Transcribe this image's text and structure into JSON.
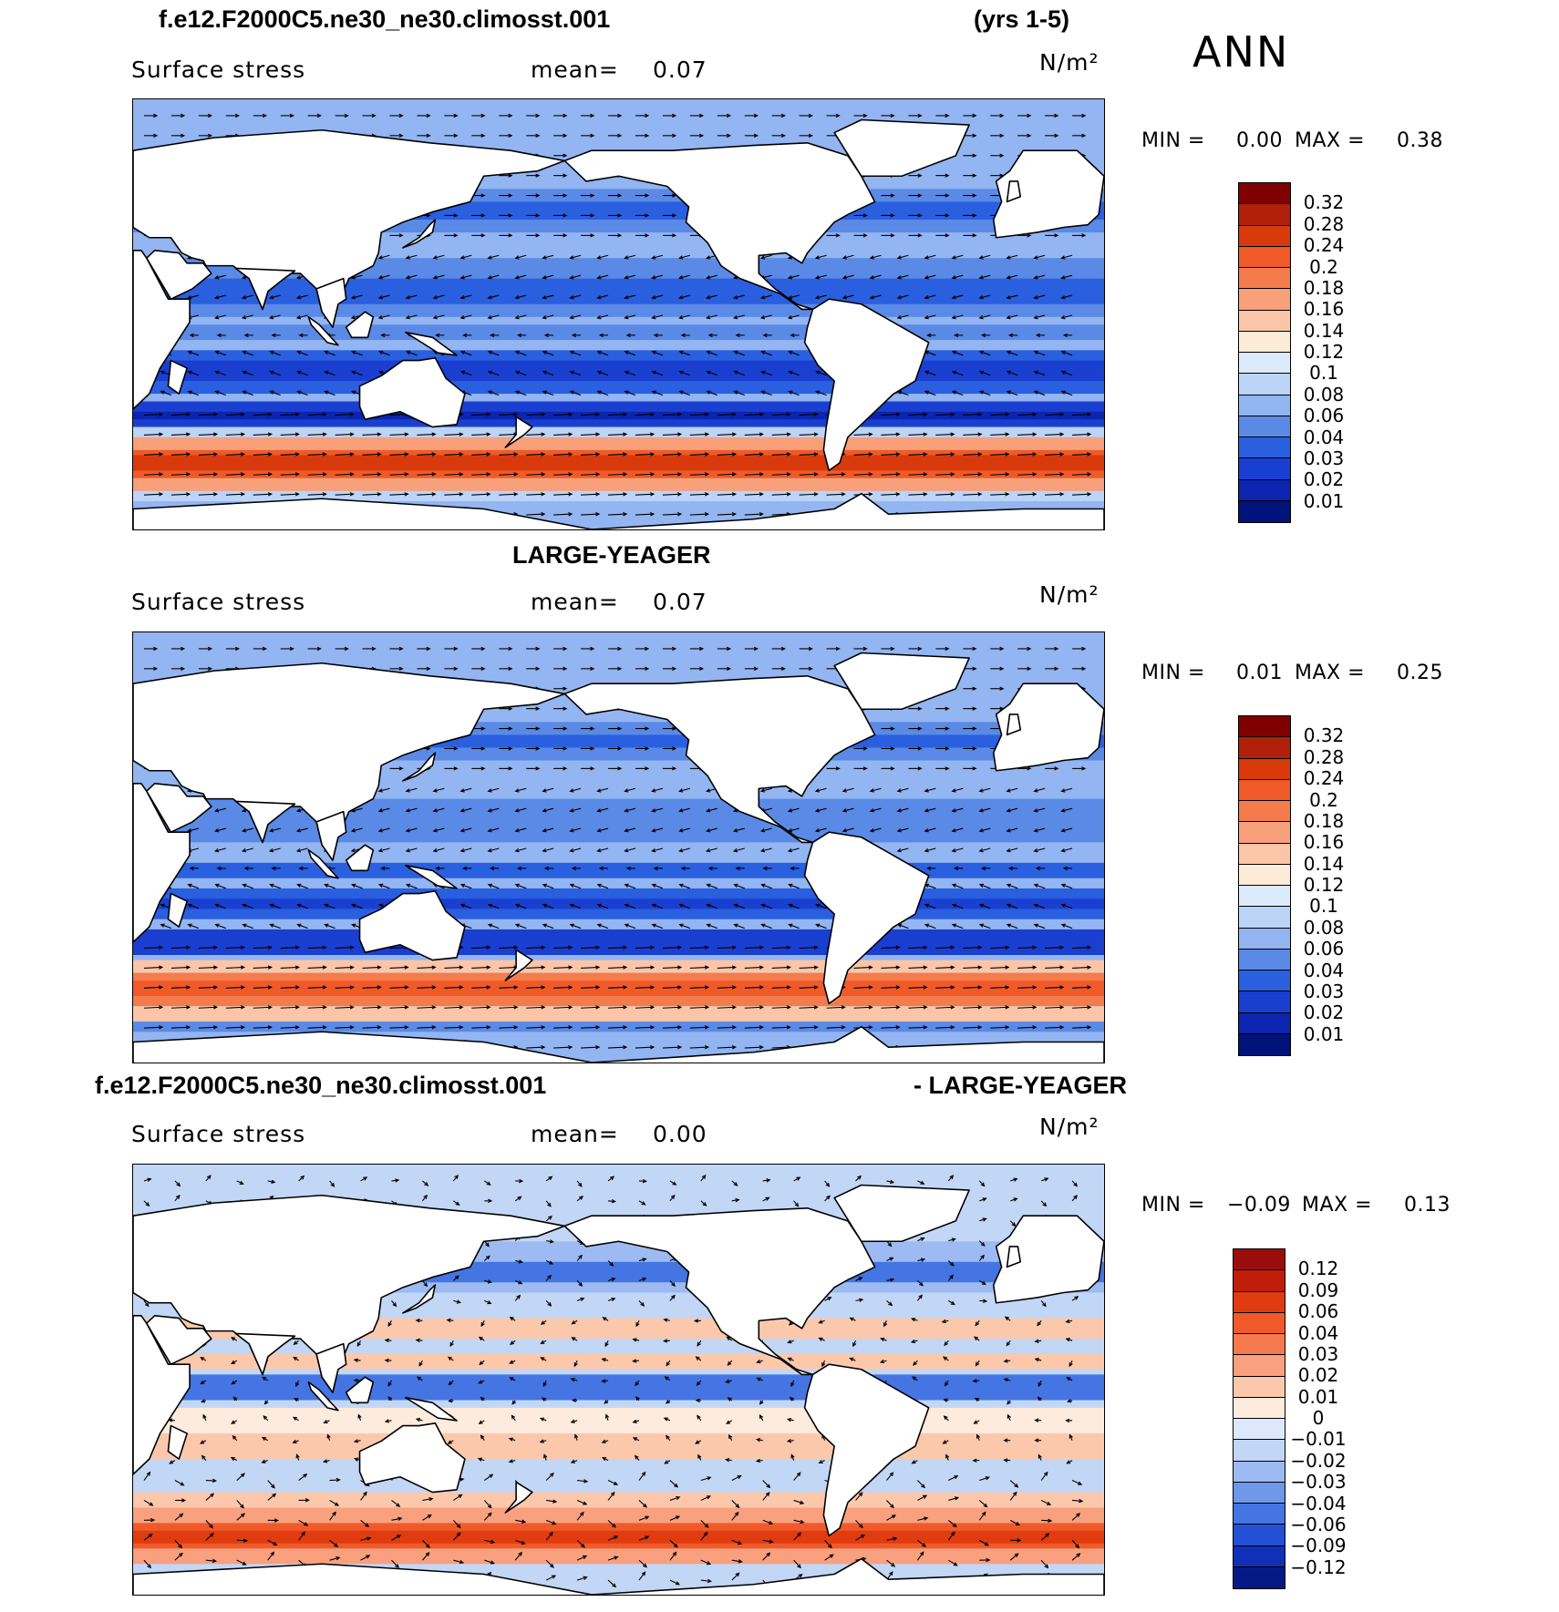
{
  "header": {
    "case_name": "f.e12.F2000C5.ne30_ne30.climosst.001",
    "years": "(yrs 1-5)",
    "season": "ANN"
  },
  "panels": [
    {
      "title": "",
      "variable": "Surface stress",
      "mean_label": "mean=",
      "mean_value": "0.07",
      "units": "N/m²",
      "min_label": "MIN =",
      "min_value": "0.00",
      "max_label": "MAX =",
      "max_value": "0.38",
      "colorbar_levels": [
        "0.32",
        "0.28",
        "0.24",
        "0.2",
        "0.18",
        "0.16",
        "0.14",
        "0.12",
        "0.1",
        "0.08",
        "0.06",
        "0.04",
        "0.03",
        "0.02",
        "0.01"
      ]
    },
    {
      "title": "LARGE-YEAGER",
      "variable": "Surface stress",
      "mean_label": "mean=",
      "mean_value": "0.07",
      "units": "N/m²",
      "min_label": "MIN =",
      "min_value": "0.01",
      "max_label": "MAX =",
      "max_value": "0.25",
      "colorbar_levels": [
        "0.32",
        "0.28",
        "0.24",
        "0.2",
        "0.18",
        "0.16",
        "0.14",
        "0.12",
        "0.1",
        "0.08",
        "0.06",
        "0.04",
        "0.03",
        "0.02",
        "0.01"
      ]
    },
    {
      "title_left": "f.e12.F2000C5.ne30_ne30.climosst.001",
      "title_right": "- LARGE-YEAGER",
      "variable": "Surface stress",
      "mean_label": "mean=",
      "mean_value": "0.00",
      "units": "N/m²",
      "min_label": "MIN =",
      "min_value": "−0.09",
      "max_label": "MAX =",
      "max_value": "0.13",
      "colorbar_levels": [
        "0.12",
        "0.09",
        "0.06",
        "0.04",
        "0.03",
        "0.02",
        "0.01",
        "0",
        "−0.01",
        "−0.02",
        "−0.03",
        "−0.04",
        "−0.06",
        "−0.09",
        "−0.12"
      ]
    }
  ],
  "colors": {
    "abs_scale": [
      "#800000",
      "#b0200a",
      "#d83a0c",
      "#ef5a28",
      "#f47c4c",
      "#f8a07a",
      "#fbc6a8",
      "#fdebd8",
      "#dcebfb",
      "#bcd4f7",
      "#93b5f1",
      "#5a8ae6",
      "#2a5fdf",
      "#1a3fd0",
      "#0c24b0",
      "#00137a"
    ],
    "diff_scale": [
      "#9a0d0d",
      "#c01e0a",
      "#e03c10",
      "#f05a2a",
      "#f57a4e",
      "#f9a07e",
      "#fcc8ac",
      "#fdebdd",
      "#dde9fa",
      "#c2d6f6",
      "#9dbbf2",
      "#6f97ea",
      "#4475e2",
      "#2350d4",
      "#1130b8",
      "#061a86"
    ]
  }
}
